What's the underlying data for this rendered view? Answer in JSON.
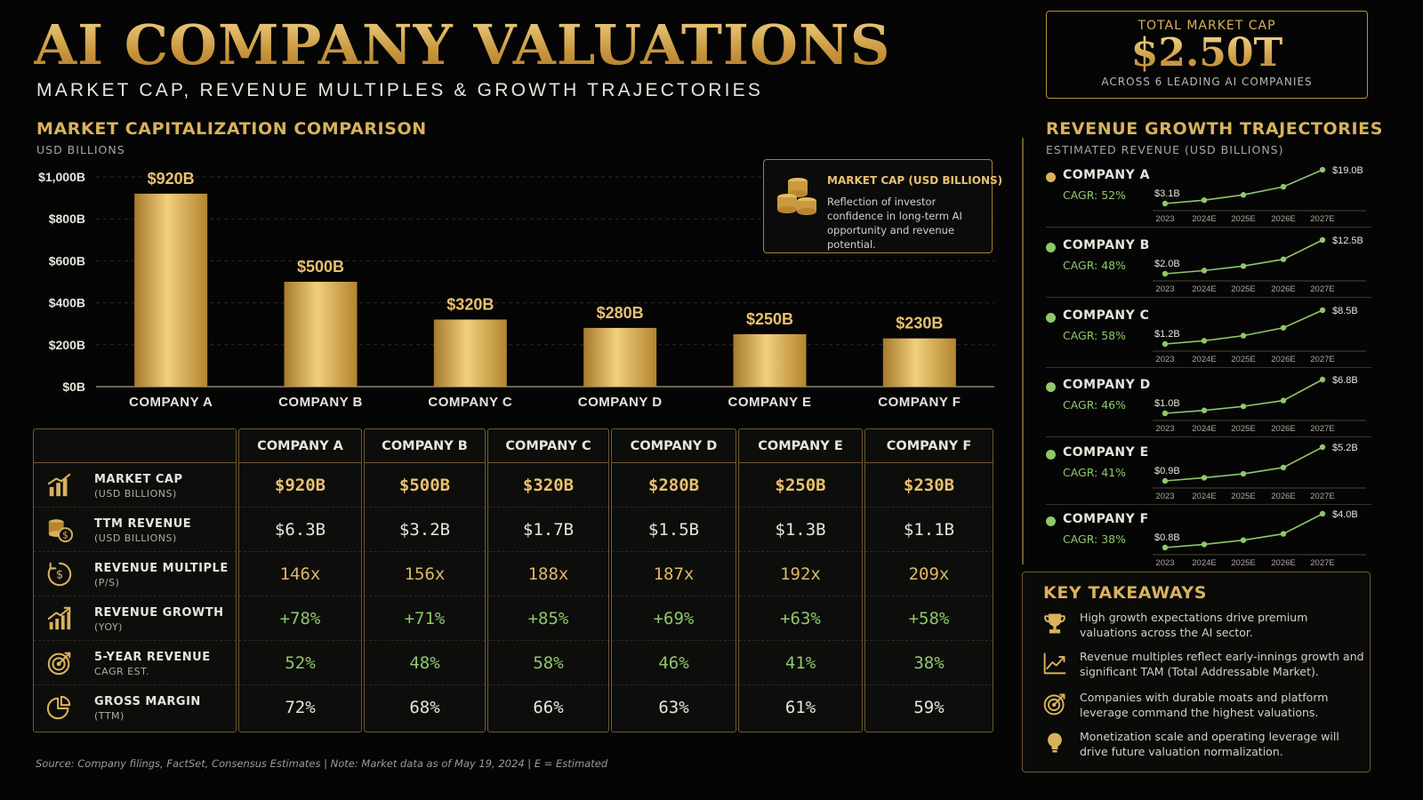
{
  "header": {
    "title": "AI COMPANY VALUATIONS",
    "subtitle": "MARKET CAP, REVENUE MULTIPLES & GROWTH TRAJECTORIES"
  },
  "total": {
    "label": "TOTAL MARKET CAP",
    "value": "$2.50T",
    "sub": "ACROSS 6 LEADING AI COMPANIES"
  },
  "market_cap_section": {
    "title": "MARKET CAPITALIZATION COMPARISON",
    "sub": "USD BILLIONS"
  },
  "legend": {
    "title": "MARKET CAP (USD BILLIONS)",
    "text": "Reflection of investor confidence in long-term AI opportunity and revenue potential.",
    "icon": "coins-icon"
  },
  "chart_data": {
    "type": "bar",
    "categories": [
      "COMPANY A",
      "COMPANY B",
      "COMPANY C",
      "COMPANY D",
      "COMPANY E",
      "COMPANY F"
    ],
    "values": [
      920,
      500,
      320,
      280,
      250,
      230
    ],
    "value_labels": [
      "$920B",
      "$500B",
      "$320B",
      "$280B",
      "$250B",
      "$230B"
    ],
    "ylim": [
      0,
      1000
    ],
    "yticks": [
      0,
      200,
      400,
      600,
      800,
      1000
    ],
    "ytick_labels": [
      "$0B",
      "$200B",
      "$400B",
      "$600B",
      "$800B",
      "$1,000B"
    ],
    "title": "MARKET CAPITALIZATION COMPARISON",
    "ylabel": "USD BILLIONS",
    "grid": true,
    "bar_color": "#d8b25c"
  },
  "table": {
    "columns": [
      "COMPANY A",
      "COMPANY B",
      "COMPANY C",
      "COMPANY D",
      "COMPANY E",
      "COMPANY F"
    ],
    "rows": [
      {
        "title": "MARKET CAP",
        "sub": "(USD BILLIONS)",
        "icon": "bar-chart-icon",
        "style": "gold",
        "values": [
          "$920B",
          "$500B",
          "$320B",
          "$280B",
          "$250B",
          "$230B"
        ]
      },
      {
        "title": "TTM REVENUE",
        "sub": "(USD BILLIONS)",
        "icon": "coins-dollar-icon",
        "style": "white",
        "values": [
          "$6.3B",
          "$3.2B",
          "$1.7B",
          "$1.5B",
          "$1.3B",
          "$1.1B"
        ]
      },
      {
        "title": "REVENUE MULTIPLE",
        "sub": "(P/S)",
        "icon": "dollar-cycle-icon",
        "style": "amber",
        "values": [
          "146x",
          "156x",
          "188x",
          "187x",
          "192x",
          "209x"
        ]
      },
      {
        "title": "REVENUE GROWTH",
        "sub": "(YOY)",
        "icon": "growth-chart-icon",
        "style": "green",
        "values": [
          "+78%",
          "+71%",
          "+85%",
          "+69%",
          "+63%",
          "+58%"
        ]
      },
      {
        "title": "5-YEAR REVENUE",
        "sub": "CAGR EST.",
        "icon": "target-icon",
        "style": "green",
        "values": [
          "52%",
          "48%",
          "58%",
          "46%",
          "41%",
          "38%"
        ]
      },
      {
        "title": "GROSS MARGIN",
        "sub": "(TTM)",
        "icon": "pie-chart-icon",
        "style": "white",
        "values": [
          "72%",
          "68%",
          "66%",
          "63%",
          "61%",
          "59%"
        ]
      }
    ]
  },
  "growth_section": {
    "title": "REVENUE GROWTH TRAJECTORIES",
    "sub": "ESTIMATED REVENUE (USD BILLIONS)",
    "years": [
      "2023",
      "2024E",
      "2025E",
      "2026E",
      "2027E"
    ],
    "companies": [
      {
        "name": "COMPANY A",
        "cagr": "CAGR: 52%",
        "dot_color": "#d8b25c",
        "start": "$3.1B",
        "end": "$19.0B",
        "trend": [
          3.1,
          4.7,
          7.2,
          11.0,
          19.0
        ]
      },
      {
        "name": "COMPANY B",
        "cagr": "CAGR: 48%",
        "dot_color": "#8fc76a",
        "start": "$2.0B",
        "end": "$12.5B",
        "trend": [
          2.0,
          3.0,
          4.4,
          6.5,
          12.5
        ]
      },
      {
        "name": "COMPANY C",
        "cagr": "CAGR: 58%",
        "dot_color": "#8fc76a",
        "start": "$1.2B",
        "end": "$8.5B",
        "trend": [
          1.2,
          1.9,
          3.0,
          4.7,
          8.5
        ]
      },
      {
        "name": "COMPANY D",
        "cagr": "CAGR: 46%",
        "dot_color": "#8fc76a",
        "start": "$1.0B",
        "end": "$6.8B",
        "trend": [
          1.0,
          1.5,
          2.2,
          3.2,
          6.8
        ]
      },
      {
        "name": "COMPANY E",
        "cagr": "CAGR: 41%",
        "dot_color": "#8fc76a",
        "start": "$0.9B",
        "end": "$5.2B",
        "trend": [
          0.9,
          1.3,
          1.8,
          2.6,
          5.2
        ]
      },
      {
        "name": "COMPANY F",
        "cagr": "CAGR: 38%",
        "dot_color": "#8fc76a",
        "start": "$0.8B",
        "end": "$4.0B",
        "trend": [
          0.8,
          1.1,
          1.5,
          2.1,
          4.0
        ]
      }
    ]
  },
  "takeaways": {
    "title": "KEY TAKEAWAYS",
    "items": [
      {
        "icon": "trophy-icon",
        "text": "High growth expectations drive premium valuations across the AI sector."
      },
      {
        "icon": "trend-up-icon",
        "text": "Revenue multiples reflect early-innings growth and significant TAM (Total Addressable Market)."
      },
      {
        "icon": "target-icon",
        "text": "Companies with durable moats and platform leverage command the highest valuations."
      },
      {
        "icon": "lightbulb-icon",
        "text": "Monetization scale and operating leverage will drive future valuation normalization."
      }
    ]
  },
  "footnote": "Source: Company filings, FactSet, Consensus Estimates   |   Note: Market data as of May 19, 2024   |   E = Estimated",
  "colors": {
    "gold": "#d8b25c",
    "green": "#8fc76a",
    "background": "#050505"
  }
}
